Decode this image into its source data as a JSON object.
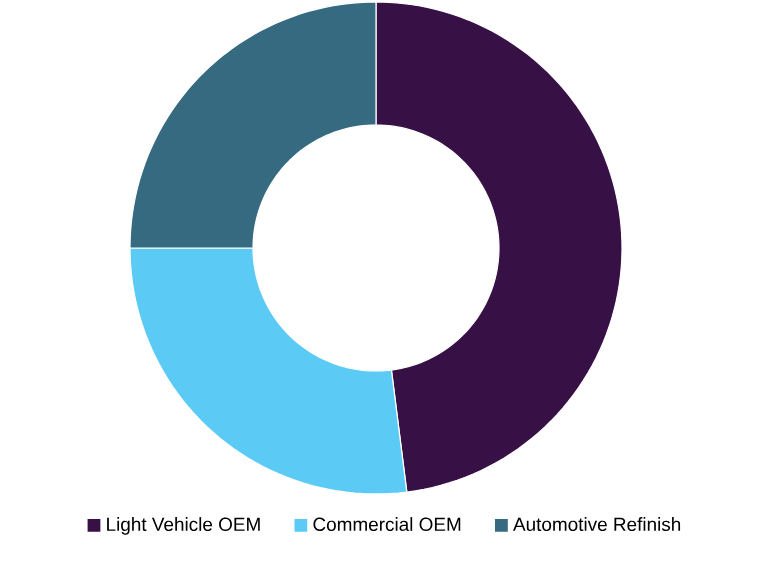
{
  "chart_data": {
    "type": "donut",
    "categories": [
      "Light Vehicle OEM",
      "Commercial OEM",
      "Automotive Refinish"
    ],
    "values": [
      48,
      27,
      25
    ],
    "colors": [
      "#371045",
      "#5bcbf5",
      "#356a80"
    ],
    "legend": "bottom"
  }
}
